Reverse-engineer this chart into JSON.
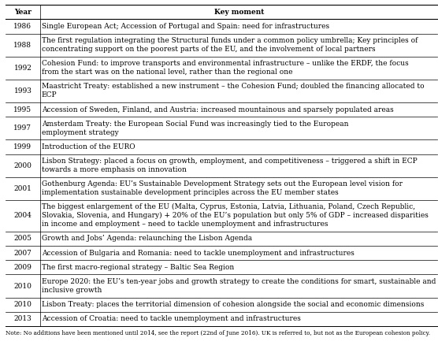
{
  "bg_color": "#ffffff",
  "text_color": "#000000",
  "font_size": 6.5,
  "footnote_size": 5.2,
  "year_col_label": "Year",
  "key_col_label": "Key moment",
  "footnote_text": "Note: No additions have been mentioned until 2014, see the report (22nd of June 2016). UK is referred to, but not as the European cohesion policy.",
  "rows": [
    {
      "year": "1986",
      "lines": [
        "Single European Act; Accession of Portugal and Spain: need for infrastructures"
      ]
    },
    {
      "year": "1988",
      "lines": [
        "The first regulation integrating the Structural funds under a common policy umbrella; Key principles of",
        "concentrating support on the poorest parts of the EU, and the involvement of local partners"
      ]
    },
    {
      "year": "1992",
      "lines": [
        "Cohesion Fund: to improve transports and environmental infrastructure – unlike the ERDF, the focus",
        "from the start was on the national level, rather than the regional one"
      ]
    },
    {
      "year": "1993",
      "lines": [
        "Maastricht Treaty: established a new instrument – the Cohesion Fund; doubled the financing allocated to",
        "ECP"
      ]
    },
    {
      "year": "1995",
      "lines": [
        "Accession of Sweden, Finland, and Austria: increased mountainous and sparsely populated areas"
      ]
    },
    {
      "year": "1997",
      "lines": [
        "Amsterdam Treaty: the European Social Fund was increasingly tied to the European",
        "employment strategy"
      ]
    },
    {
      "year": "1999",
      "lines": [
        "Introduction of the EURO"
      ]
    },
    {
      "year": "2000",
      "lines": [
        "Lisbon Strategy: placed a focus on growth, employment, and competitiveness – triggered a shift in ECP",
        "towards a more emphasis on innovation"
      ]
    },
    {
      "year": "2001",
      "lines": [
        "Gothenburg Agenda: EU’s Sustainable Development Strategy sets out the European level vision for",
        "implementation sustainable development principles across the EU member states"
      ]
    },
    {
      "year": "2004",
      "lines": [
        "The biggest enlargement of the EU (Malta, Cyprus, Estonia, Latvia, Lithuania, Poland, Czech Republic,",
        "Slovakia, Slovenia, and Hungary) + 20% of the EU’s population but only 5% of GDP – increased disparities",
        "in income and employment – need to tackle unemployment and infrastructures"
      ]
    },
    {
      "year": "2005",
      "lines": [
        "Growth and Jobs’ Agenda: relaunching the Lisbon Agenda"
      ]
    },
    {
      "year": "2007",
      "lines": [
        "Accession of Bulgaria and Romania: need to tackle unemployment and infrastructures"
      ]
    },
    {
      "year": "2009",
      "lines": [
        "The first macro-regional strategy – Baltic Sea Region"
      ]
    },
    {
      "year": "2010",
      "lines": [
        "Europe 2020: the EU’s ten-year jobs and growth strategy to create the conditions for smart, sustainable and",
        "inclusive growth"
      ]
    },
    {
      "year": "2010",
      "lines": [
        "Lisbon Treaty: places the territorial dimension of cohesion alongside the social and economic dimensions"
      ]
    },
    {
      "year": "2013",
      "lines": [
        "Accession of Croatia: need to tackle unemployment and infrastructures"
      ]
    }
  ]
}
